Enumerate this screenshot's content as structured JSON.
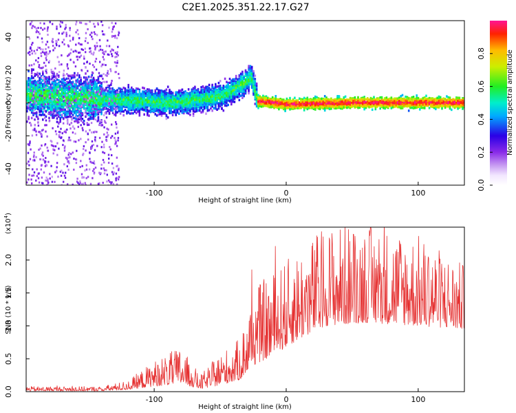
{
  "title": "C2E1.2025.351.22.17.G27",
  "colors": {
    "snr_line": "#e53030",
    "axis": "#000000",
    "background": "#ffffff"
  },
  "chart_data": [
    {
      "type": "heatmap",
      "name": "spectrogram",
      "xlabel": "Height of straight line (km)",
      "ylabel": "Frequency (Hz)",
      "xlim": [
        -197,
        135
      ],
      "ylim": [
        -50,
        50
      ],
      "x_ticks": [
        -100,
        0,
        100
      ],
      "y_ticks": [
        -40,
        -20,
        0,
        20,
        40
      ],
      "colorbar": {
        "label": "Normalized spectral amplitude",
        "range": [
          0.0,
          1.0
        ],
        "ticks": [
          "0.0",
          "0.2",
          "0.4",
          "0.6",
          "0.8"
        ],
        "tick_values": [
          0.0,
          0.2,
          0.4,
          0.6,
          0.8
        ]
      },
      "ridge": [
        {
          "x": -197,
          "f": 5
        },
        {
          "x": -170,
          "f": 3
        },
        {
          "x": -140,
          "f": 2
        },
        {
          "x": -110,
          "f": 1
        },
        {
          "x": -85,
          "f": 0
        },
        {
          "x": -65,
          "f": 2
        },
        {
          "x": -50,
          "f": 4
        },
        {
          "x": -40,
          "f": 8
        },
        {
          "x": -30,
          "f": 13
        },
        {
          "x": -27,
          "f": 16
        },
        {
          "x": -22,
          "f": 1
        },
        {
          "x": 0,
          "f": -1
        },
        {
          "x": 50,
          "f": 0
        },
        {
          "x": 100,
          "f": 0
        },
        {
          "x": 135,
          "f": 0
        }
      ]
    },
    {
      "type": "line",
      "name": "snr",
      "xlabel": "Height of straight line (km)",
      "ylabel": "SNR (10 * v/v)",
      "y_multiplier": "(x10",
      "y_multiplier_exp": "4",
      "y_multiplier_close": ")",
      "xlim": [
        -197,
        135
      ],
      "ylim": [
        0,
        2.5
      ],
      "x_ticks": [
        -100,
        0,
        100
      ],
      "y_ticks": [
        0.0,
        0.5,
        1.0,
        1.5,
        2.0
      ],
      "y_tick_labels": [
        "0.0",
        "0.5",
        "1.0",
        "1.5",
        "2.0"
      ],
      "envelope": [
        {
          "x": -197,
          "base": 0.01,
          "amp": 0.05
        },
        {
          "x": -140,
          "base": 0.01,
          "amp": 0.05
        },
        {
          "x": -120,
          "base": 0.03,
          "amp": 0.1
        },
        {
          "x": -100,
          "base": 0.08,
          "amp": 0.28
        },
        {
          "x": -80,
          "base": 0.12,
          "amp": 0.4
        },
        {
          "x": -65,
          "base": 0.04,
          "amp": 0.15
        },
        {
          "x": -50,
          "base": 0.1,
          "amp": 0.35
        },
        {
          "x": -35,
          "base": 0.18,
          "amp": 0.45
        },
        {
          "x": -25,
          "base": 0.4,
          "amp": 0.85
        },
        {
          "x": -10,
          "base": 0.55,
          "amp": 0.9
        },
        {
          "x": 10,
          "base": 0.8,
          "amp": 1.0
        },
        {
          "x": 30,
          "base": 1.0,
          "amp": 1.1
        },
        {
          "x": 60,
          "base": 1.05,
          "amp": 1.1
        },
        {
          "x": 100,
          "base": 1.0,
          "amp": 1.0
        },
        {
          "x": 135,
          "base": 0.95,
          "amp": 0.7
        }
      ]
    }
  ]
}
